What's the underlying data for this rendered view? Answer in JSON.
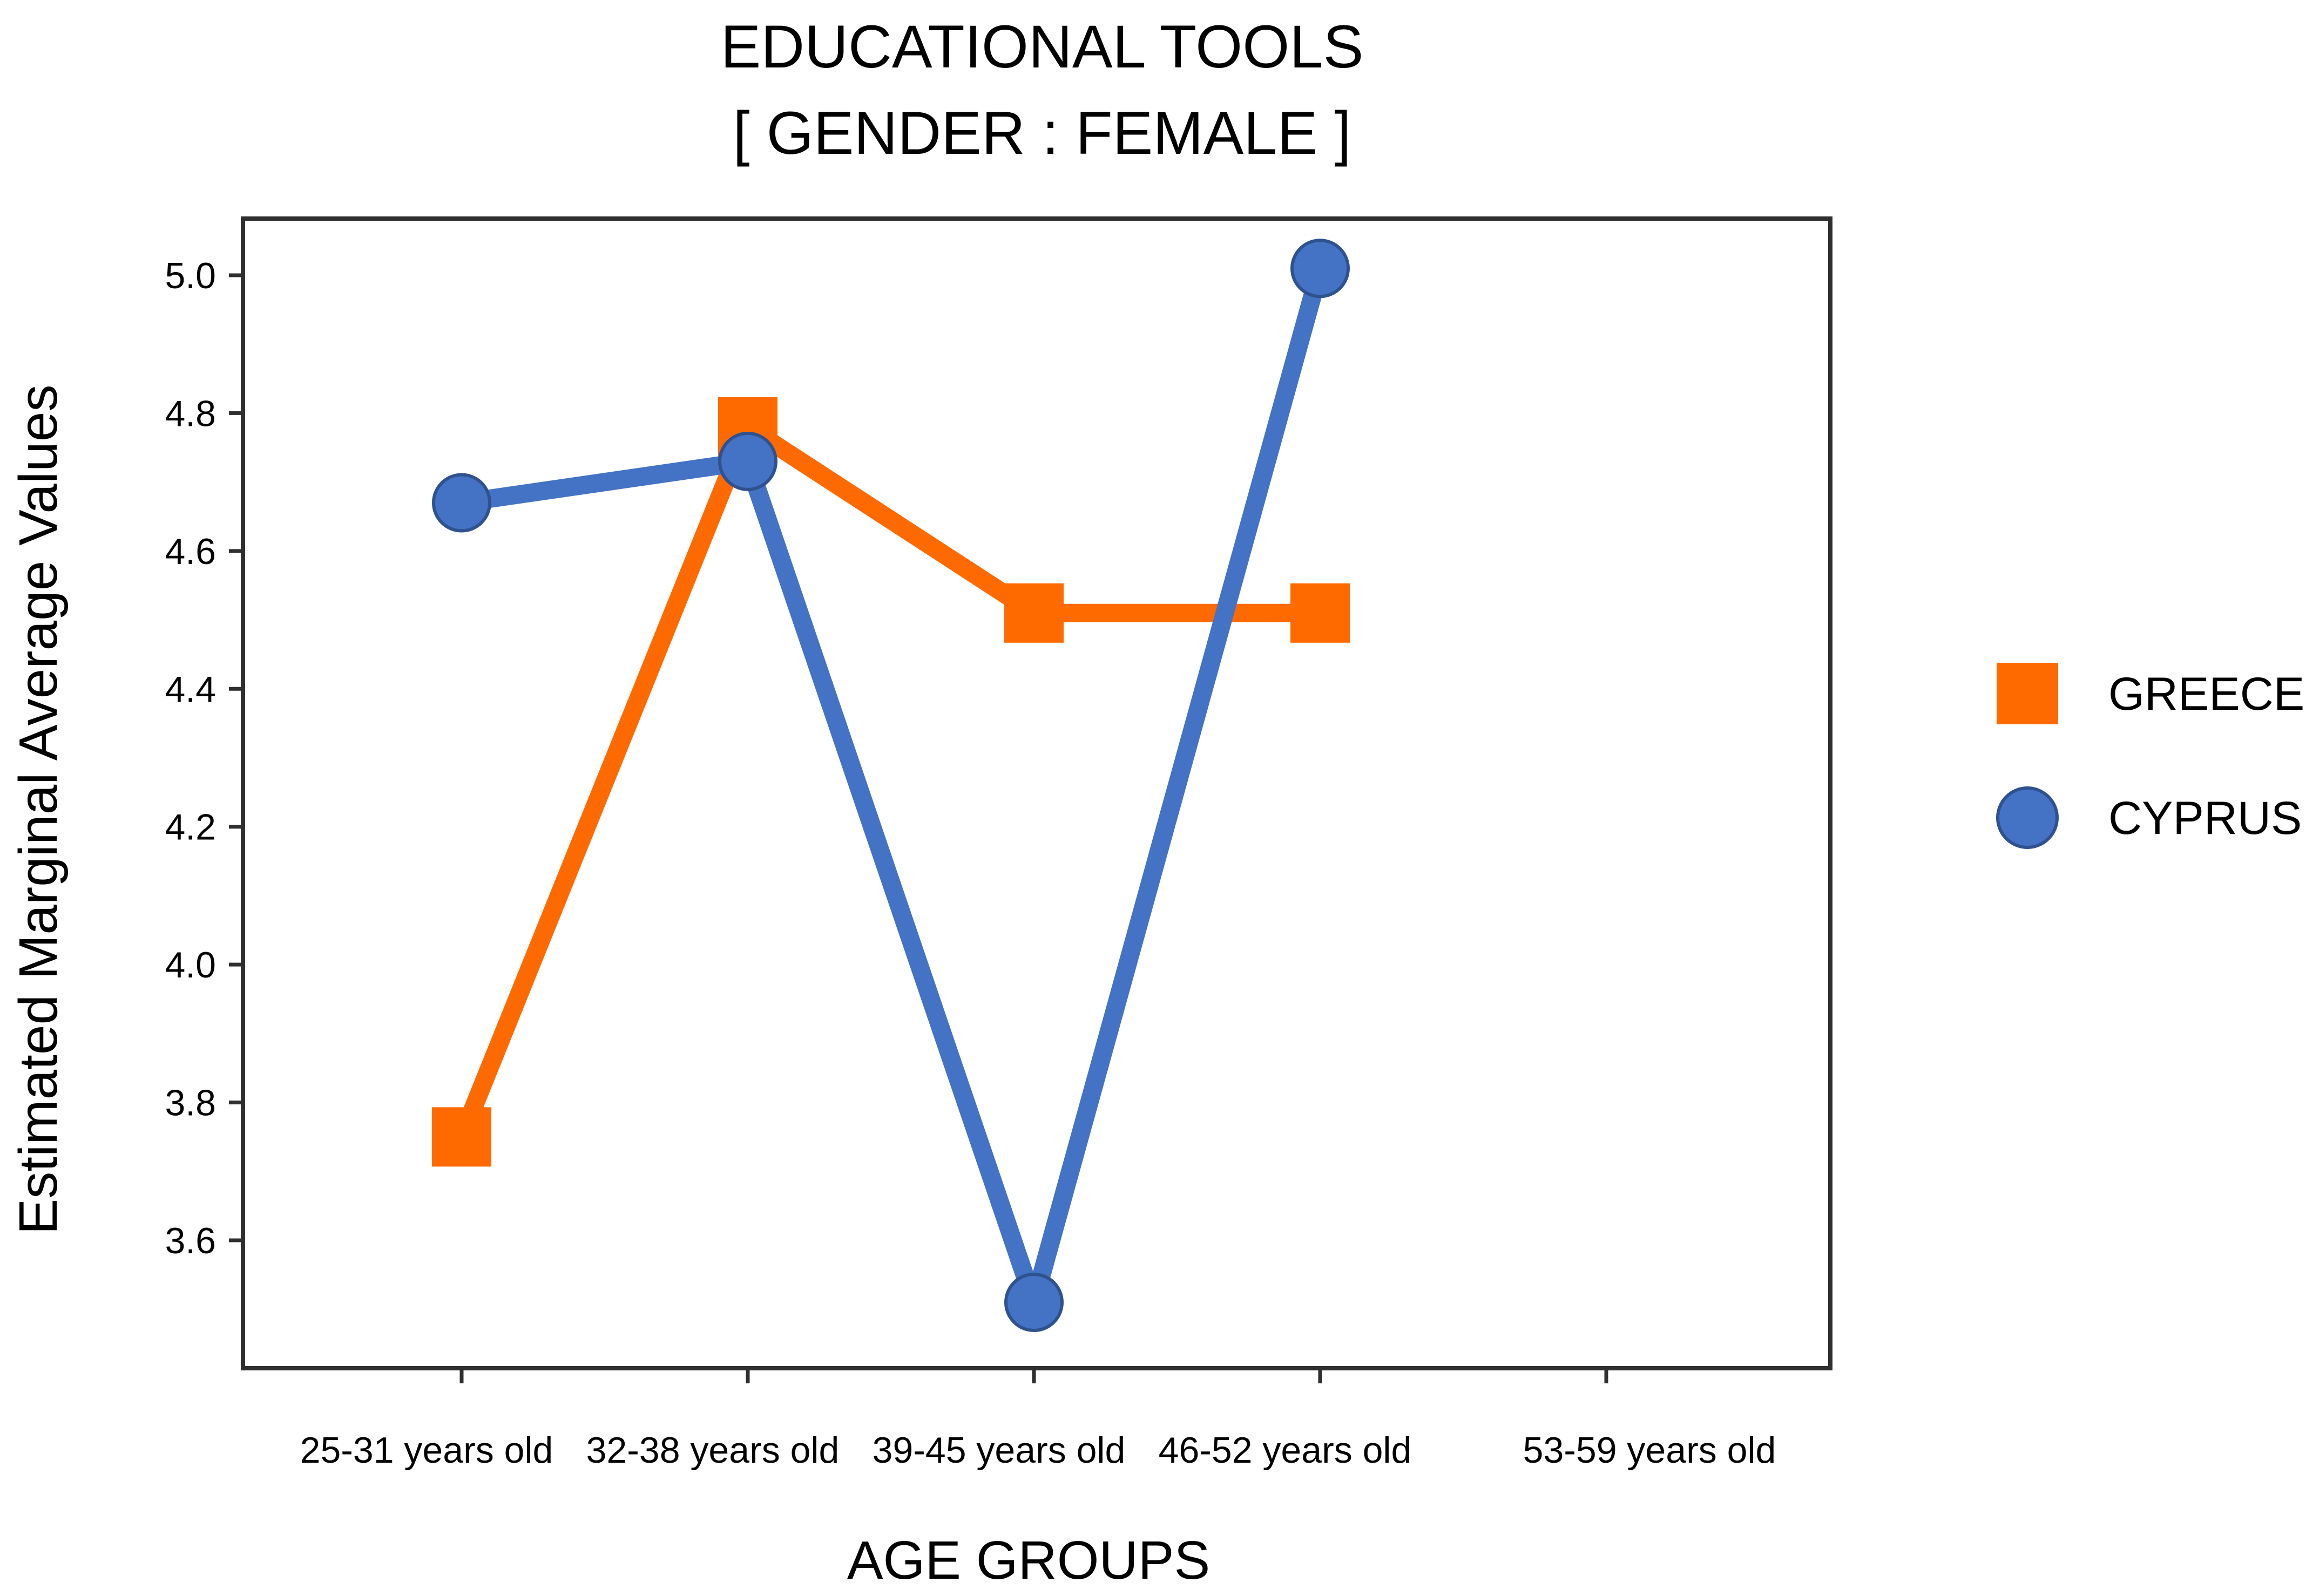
{
  "chart_data": {
    "type": "line",
    "title": "EDUCATIONAL TOOLS",
    "subtitle": "[ GENDER : FEMALE ]",
    "xlabel": "AGE GROUPS",
    "ylabel": "Estimated Marginal Average Values",
    "categories": [
      "25-31 years old",
      "32-38 years old",
      "39-45 years old",
      "46-52 years old",
      "53-59 years old"
    ],
    "ylim": [
      3.4,
      5.08
    ],
    "yticks": [
      "3.6",
      "3.8",
      "4.0",
      "4.2",
      "4.4",
      "4.6",
      "4.8",
      "5.0"
    ],
    "grid": false,
    "legend_position": "right",
    "series": [
      {
        "name": "GREECE",
        "color": "#ff6a00",
        "marker": "square",
        "values": [
          3.75,
          4.78,
          4.51,
          4.51,
          null
        ]
      },
      {
        "name": "CYPRUS",
        "color": "#4472c4",
        "marker": "circle",
        "values": [
          4.67,
          4.73,
          3.51,
          5.01,
          null
        ]
      }
    ]
  }
}
